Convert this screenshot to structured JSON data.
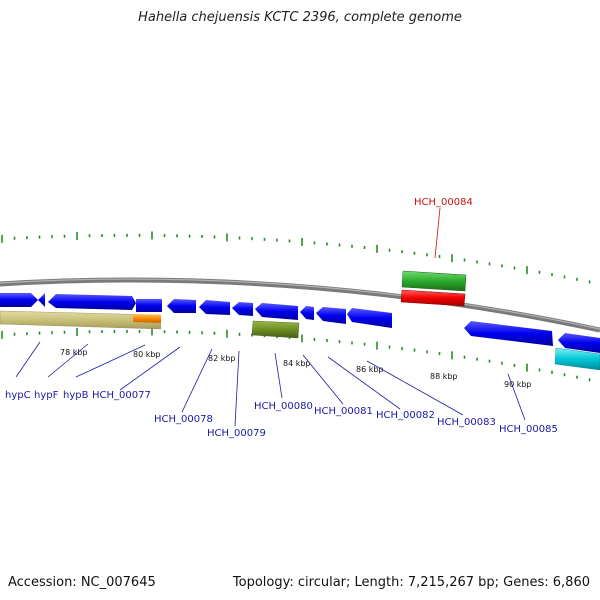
{
  "title": "Hahella chejuensis KCTC 2396, complete genome",
  "footer": {
    "accession": "Accession: NC_007645",
    "topology": "Topology: circular; Length: 7,215,267 bp; Genes: 6,860"
  },
  "scale_labels": [
    "78 kbp",
    "80 kbp",
    "82 kbp",
    "84 kbp",
    "86 kbp",
    "88 kbp",
    "90 kbp"
  ],
  "gene_labels": [
    {
      "id": "hypC",
      "text": "hypC",
      "color": "#1a1aa6"
    },
    {
      "id": "hypF",
      "text": "hypF",
      "color": "#1a1aa6"
    },
    {
      "id": "hypB",
      "text": "hypB",
      "color": "#1a1aa6"
    },
    {
      "id": "HCH_00077",
      "text": "HCH_00077",
      "color": "#1a1aa6"
    },
    {
      "id": "HCH_00078",
      "text": "HCH_00078",
      "color": "#1a1aa6"
    },
    {
      "id": "HCH_00079",
      "text": "HCH_00079",
      "color": "#1a1aa6"
    },
    {
      "id": "HCH_00080",
      "text": "HCH_00080",
      "color": "#1a1aa6"
    },
    {
      "id": "HCH_00081",
      "text": "HCH_00081",
      "color": "#1a1aa6"
    },
    {
      "id": "HCH_00082",
      "text": "HCH_00082",
      "color": "#1a1aa6"
    },
    {
      "id": "HCH_00083",
      "text": "HCH_00083",
      "color": "#1a1aa6"
    },
    {
      "id": "HCH_00084",
      "text": "HCH_00084",
      "color": "#cc1111"
    },
    {
      "id": "HCH_00085",
      "text": "HCH_00085",
      "color": "#1a1aa6"
    }
  ],
  "colors": {
    "backbone": "#808080",
    "cds": "#0000ee",
    "tick": "#2a8a2a",
    "highlight_gene": "#ee0000",
    "highlight_match": "#2eaa2e",
    "olive": "#6b8e23",
    "khaki": "#c8c07a",
    "orange": "#ff8800",
    "cyan": "#00c8d8"
  }
}
